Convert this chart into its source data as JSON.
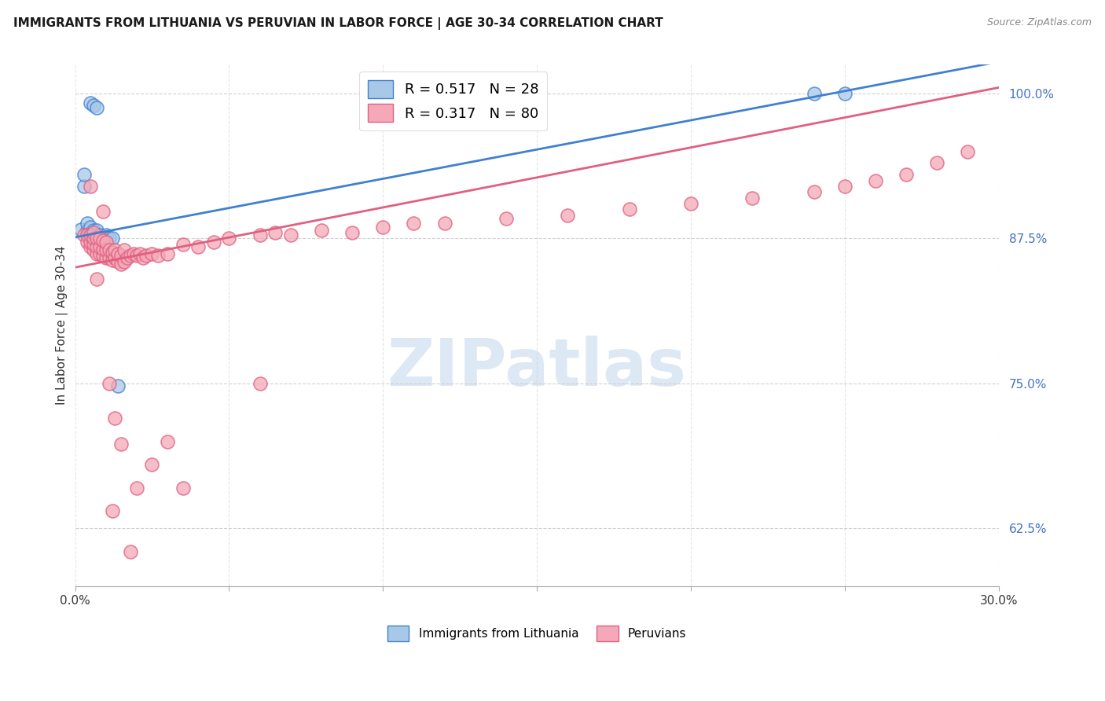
{
  "title": "IMMIGRANTS FROM LITHUANIA VS PERUVIAN IN LABOR FORCE | AGE 30-34 CORRELATION CHART",
  "source": "Source: ZipAtlas.com",
  "ylabel": "In Labor Force | Age 30-34",
  "yticks": [
    0.625,
    0.75,
    0.875,
    1.0
  ],
  "ytick_labels": [
    "62.5%",
    "75.0%",
    "87.5%",
    "100.0%"
  ],
  "xmin": 0.0,
  "xmax": 0.3,
  "ymin": 0.575,
  "ymax": 1.025,
  "legend1_label": "Immigrants from Lithuania",
  "legend2_label": "Peruvians",
  "r1": 0.517,
  "n1": 28,
  "r2": 0.317,
  "n2": 80,
  "color_blue": "#a8c8e8",
  "color_pink": "#f4a8b8",
  "line_blue": "#4080d0",
  "line_pink": "#e06080",
  "watermark_text": "ZIPatlas",
  "watermark_color": "#dde8f5",
  "blue_x": [
    0.002,
    0.003,
    0.003,
    0.004,
    0.004,
    0.004,
    0.005,
    0.005,
    0.005,
    0.005,
    0.006,
    0.006,
    0.006,
    0.006,
    0.007,
    0.007,
    0.007,
    0.007,
    0.008,
    0.008,
    0.009,
    0.01,
    0.01,
    0.011,
    0.012,
    0.014,
    0.24,
    0.25
  ],
  "blue_y": [
    0.883,
    0.92,
    0.93,
    0.878,
    0.882,
    0.888,
    0.876,
    0.88,
    0.885,
    0.992,
    0.875,
    0.878,
    0.882,
    0.99,
    0.875,
    0.878,
    0.882,
    0.988,
    0.875,
    0.878,
    0.875,
    0.875,
    0.878,
    0.875,
    0.875,
    0.748,
    1.0,
    1.0
  ],
  "pink_x": [
    0.003,
    0.004,
    0.004,
    0.005,
    0.005,
    0.005,
    0.006,
    0.006,
    0.006,
    0.006,
    0.007,
    0.007,
    0.007,
    0.008,
    0.008,
    0.008,
    0.009,
    0.009,
    0.009,
    0.01,
    0.01,
    0.01,
    0.011,
    0.011,
    0.012,
    0.012,
    0.013,
    0.013,
    0.014,
    0.014,
    0.015,
    0.015,
    0.016,
    0.016,
    0.017,
    0.018,
    0.019,
    0.02,
    0.021,
    0.022,
    0.023,
    0.025,
    0.027,
    0.03,
    0.035,
    0.04,
    0.045,
    0.05,
    0.06,
    0.065,
    0.07,
    0.08,
    0.09,
    0.1,
    0.11,
    0.12,
    0.14,
    0.16,
    0.18,
    0.2,
    0.22,
    0.24,
    0.25,
    0.26,
    0.27,
    0.28,
    0.29,
    0.005,
    0.007,
    0.009,
    0.011,
    0.013,
    0.015,
    0.02,
    0.025,
    0.03,
    0.012,
    0.018,
    0.035,
    0.06
  ],
  "pink_y": [
    0.878,
    0.872,
    0.878,
    0.868,
    0.872,
    0.878,
    0.865,
    0.87,
    0.875,
    0.88,
    0.862,
    0.868,
    0.875,
    0.862,
    0.868,
    0.875,
    0.86,
    0.866,
    0.873,
    0.858,
    0.865,
    0.872,
    0.858,
    0.865,
    0.856,
    0.863,
    0.858,
    0.865,
    0.855,
    0.862,
    0.853,
    0.86,
    0.855,
    0.865,
    0.858,
    0.86,
    0.862,
    0.86,
    0.862,
    0.858,
    0.86,
    0.862,
    0.86,
    0.862,
    0.87,
    0.868,
    0.872,
    0.875,
    0.878,
    0.88,
    0.878,
    0.882,
    0.88,
    0.885,
    0.888,
    0.888,
    0.892,
    0.895,
    0.9,
    0.905,
    0.91,
    0.915,
    0.92,
    0.925,
    0.93,
    0.94,
    0.95,
    0.92,
    0.84,
    0.898,
    0.75,
    0.72,
    0.698,
    0.66,
    0.68,
    0.7,
    0.64,
    0.605,
    0.66,
    0.75
  ]
}
